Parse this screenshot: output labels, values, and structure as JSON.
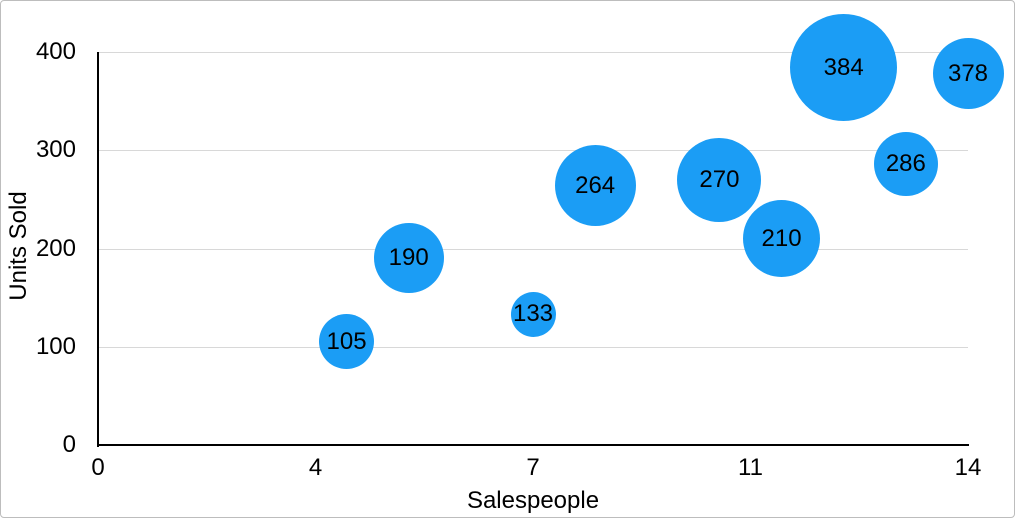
{
  "chart_data": {
    "type": "scatter",
    "subtype": "bubble",
    "xlabel": "Salespeople",
    "ylabel": "Units Sold",
    "xlim": [
      0,
      14
    ],
    "ylim": [
      0,
      400
    ],
    "grid": "horizontal",
    "legend": "none",
    "x_ticks": [
      {
        "label": "0",
        "value": 0
      },
      {
        "label": "4",
        "value": 3.5
      },
      {
        "label": "7",
        "value": 7
      },
      {
        "label": "11",
        "value": 10.5
      },
      {
        "label": "14",
        "value": 14
      }
    ],
    "y_ticks": [
      {
        "label": "0",
        "value": 0
      },
      {
        "label": "100",
        "value": 100
      },
      {
        "label": "200",
        "value": 200
      },
      {
        "label": "300",
        "value": 300
      },
      {
        "label": "400",
        "value": 400
      }
    ],
    "points": [
      {
        "x": 4,
        "units_sold": 105,
        "label": "105",
        "radius_px": 27.5
      },
      {
        "x": 5,
        "units_sold": 190,
        "label": "190",
        "radius_px": 35
      },
      {
        "x": 7,
        "units_sold": 133,
        "label": "133",
        "radius_px": 22.5
      },
      {
        "x": 8,
        "units_sold": 264,
        "label": "264",
        "radius_px": 40.5
      },
      {
        "x": 10,
        "units_sold": 270,
        "label": "270",
        "radius_px": 42
      },
      {
        "x": 11,
        "units_sold": 210,
        "label": "210",
        "radius_px": 38.5
      },
      {
        "x": 12,
        "units_sold": 384,
        "label": "384",
        "radius_px": 53.5
      },
      {
        "x": 13,
        "units_sold": 286,
        "label": "286",
        "radius_px": 32
      },
      {
        "x": 14,
        "units_sold": 378,
        "label": "378",
        "radius_px": 35.5
      }
    ],
    "colors": {
      "bubble": "#1B9DF5",
      "grid": "#d8d8d8",
      "axis": "#000000",
      "text": "#000000",
      "frame_border": "#bdbdbd",
      "background": "#ffffff"
    }
  }
}
